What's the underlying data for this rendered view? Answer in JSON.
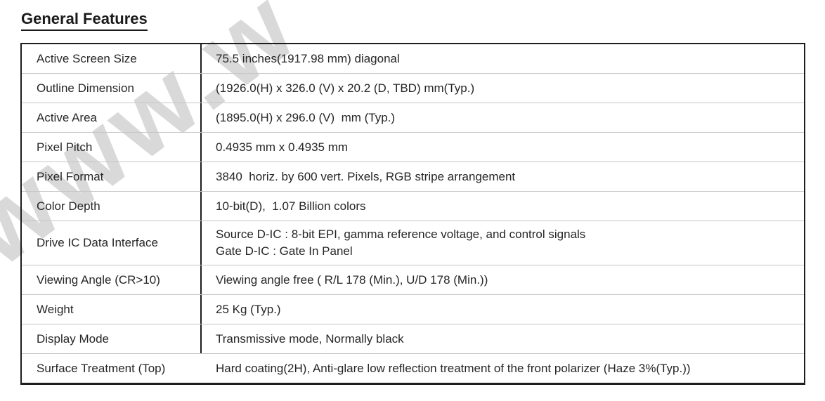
{
  "page": {
    "title": "General Features"
  },
  "watermark": {
    "text": "www.w"
  },
  "colors": {
    "border_black": "#1d1d1d",
    "row_divider": "#c6c6c6",
    "text": "#262626",
    "watermark": "#d9d9d9"
  },
  "table": {
    "rows": [
      {
        "label": "Active Screen Size",
        "value": "75.5 inches(1917.98 mm) diagonal"
      },
      {
        "label": "Outline Dimension",
        "value": "(1926.0(H) x 326.0 (V) x 20.2 (D, TBD) mm(Typ.)"
      },
      {
        "label": "Active Area",
        "value": "(1895.0(H) x 296.0 (V)  mm (Typ.)"
      },
      {
        "label": "Pixel Pitch",
        "value": "0.4935 mm x 0.4935 mm"
      },
      {
        "label": "Pixel Format",
        "value": "3840  horiz. by 600 vert. Pixels, RGB stripe arrangement"
      },
      {
        "label": "Color Depth",
        "value": "10-bit(D),  1.07 Billion colors"
      },
      {
        "label": "Drive IC Data Interface",
        "value": "Source D-IC : 8-bit EPI, gamma reference voltage, and control signals\nGate D-IC : Gate In Panel"
      },
      {
        "label": "Viewing Angle (CR>10)",
        "value": "Viewing angle free ( R/L 178 (Min.), U/D 178 (Min.))"
      },
      {
        "label": "Weight",
        "value": "25 Kg (Typ.)"
      },
      {
        "label": "Display Mode",
        "value": "Transmissive mode, Normally black"
      },
      {
        "label": "Surface Treatment (Top)",
        "value": "Hard coating(2H), Anti-glare low reflection treatment of the front polarizer (Haze 3%(Typ.))"
      }
    ]
  }
}
